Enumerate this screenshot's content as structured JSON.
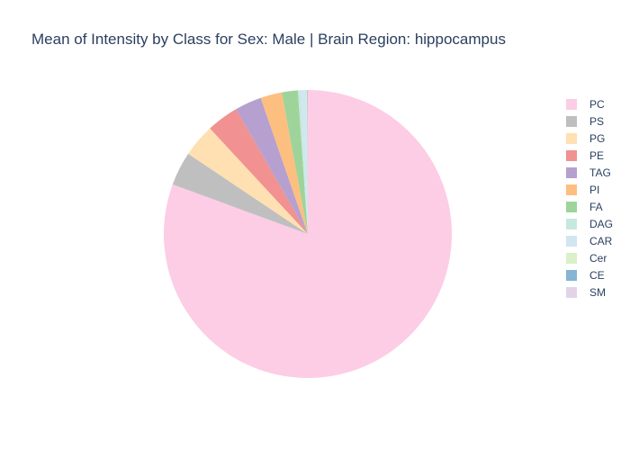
{
  "chart_data": {
    "type": "pie",
    "title": "Mean of Intensity by Class for Sex: Male | Brain Region: hippocampus",
    "legend_position": "right",
    "direction": "clockwise",
    "start_angle_deg": 0,
    "slices": [
      {
        "label": "PC",
        "value": 80.6,
        "color": "#fccde5"
      },
      {
        "label": "PS",
        "value": 3.8,
        "color": "#bfbfbf"
      },
      {
        "label": "PG",
        "value": 3.7,
        "color": "#ffe0b2"
      },
      {
        "label": "PE",
        "value": 3.6,
        "color": "#f19191"
      },
      {
        "label": "TAG",
        "value": 3.0,
        "color": "#b6a0d0"
      },
      {
        "label": "PI",
        "value": 2.4,
        "color": "#fdbf80"
      },
      {
        "label": "FA",
        "value": 1.8,
        "color": "#9ed49a"
      },
      {
        "label": "DAG",
        "value": 0.3,
        "color": "#c6e8df"
      },
      {
        "label": "CAR",
        "value": 0.6,
        "color": "#d0e6f0"
      },
      {
        "label": "Cer",
        "value": 0.1,
        "color": "#d9f0c8"
      },
      {
        "label": "CE",
        "value": 0.05,
        "color": "#86b4d4"
      },
      {
        "label": "SM",
        "value": 0.05,
        "color": "#e2d4e8"
      }
    ]
  }
}
